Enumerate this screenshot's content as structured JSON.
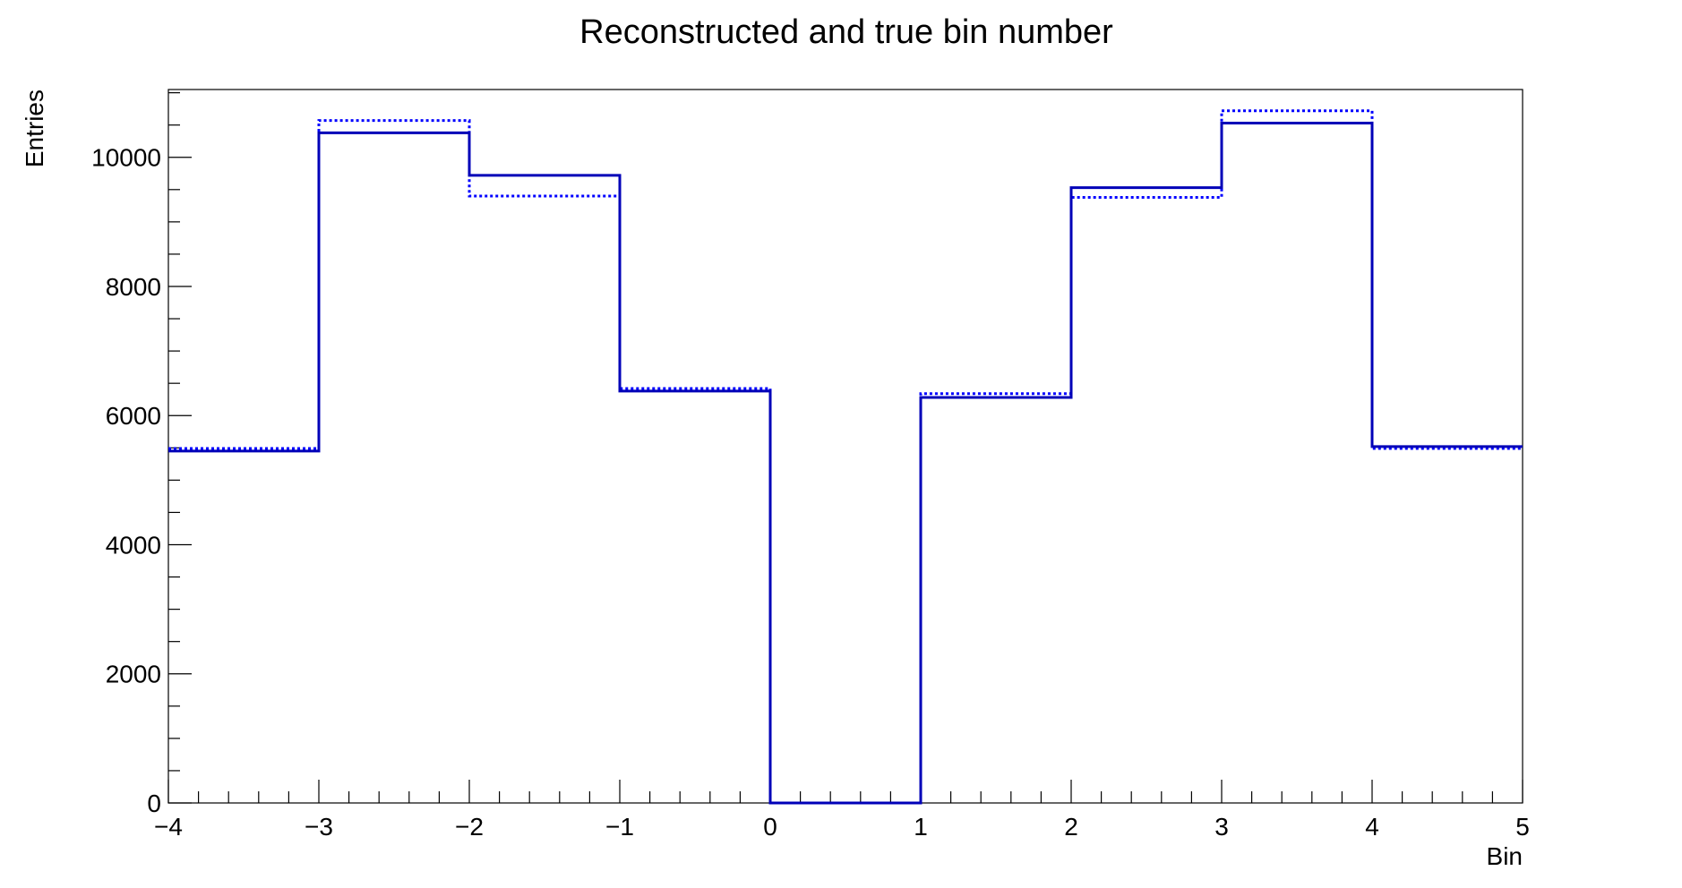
{
  "chart_data": {
    "type": "histogram",
    "title": "Reconstructed and true bin number",
    "xlabel": "Bin",
    "ylabel": "Entries",
    "xlim": [
      -4,
      5
    ],
    "ylim": [
      0,
      11050
    ],
    "x_ticks": [
      -4,
      -3,
      -2,
      -1,
      0,
      1,
      2,
      3,
      4,
      5
    ],
    "x_tick_labels": [
      "−4",
      "−3",
      "−2",
      "−1",
      "0",
      "1",
      "2",
      "3",
      "4",
      "5"
    ],
    "y_ticks": [
      0,
      2000,
      4000,
      6000,
      8000,
      10000
    ],
    "y_tick_labels": [
      "0",
      "2000",
      "4000",
      "6000",
      "8000",
      "10000"
    ],
    "bin_edges": [
      -4,
      -3,
      -2,
      -1,
      0,
      1,
      2,
      3,
      4,
      5
    ],
    "series": [
      {
        "style": "solid",
        "color": "#0000b8",
        "values": [
          5450,
          10380,
          9720,
          6380,
          0,
          6280,
          9530,
          10530,
          5520
        ]
      },
      {
        "style": "dotted",
        "color": "#0000ff",
        "values": [
          5490,
          10570,
          9400,
          6420,
          0,
          6340,
          9380,
          10720,
          5490
        ]
      }
    ],
    "grid": false,
    "legend": "none"
  }
}
